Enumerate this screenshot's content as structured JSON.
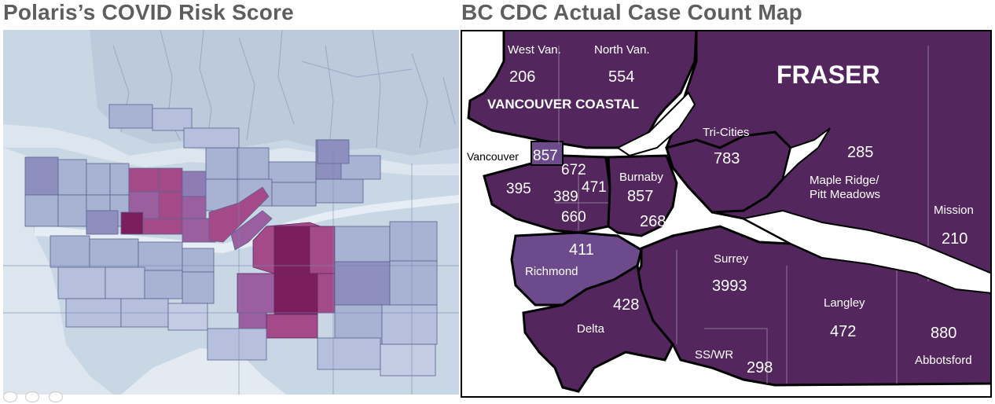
{
  "titles": {
    "left": "Polaris’s COVID Risk Score",
    "right": "BC CDC Actual Case Count Map"
  },
  "left_map": {
    "background_color": "#c9d6e4",
    "water_color": "#dde6ee",
    "high_risk_color": "#7c1e5e",
    "elevated_risk_color": "#a54a89",
    "moderate_risk_color": "#7c73ae",
    "low_risk_color": "#a8b3d3"
  },
  "right_map": {
    "region_fill": "#54265e",
    "highlight_fill": "#6c4a8c",
    "border_color": "#000000",
    "region_labels": {
      "coastal": "VANCOUVER COASTAL",
      "fraser": "FRASER"
    },
    "areas": {
      "west_van": {
        "name": "West Van.",
        "count": "206"
      },
      "north_van": {
        "name": "North Van.",
        "count": "554"
      },
      "tri_cities": {
        "name": "Tri-Cities",
        "count": "783"
      },
      "maple_ridge": {
        "name": "Maple Ridge/",
        "name2": "Pitt Meadows",
        "count": "285"
      },
      "vancouver": {
        "name": "Vancouver",
        "count": "857"
      },
      "van_a": {
        "count": "672"
      },
      "van_b": {
        "count": "395"
      },
      "van_c": {
        "count": "389"
      },
      "van_d": {
        "count": "471"
      },
      "van_e": {
        "count": "660"
      },
      "burnaby": {
        "name": "Burnaby",
        "count": "857"
      },
      "new_west": {
        "count": "268"
      },
      "mission": {
        "name": "Mission",
        "count": "210"
      },
      "richmond": {
        "name": "Richmond",
        "count": "411"
      },
      "surrey": {
        "name": "Surrey",
        "count": "3993"
      },
      "delta": {
        "name": "Delta",
        "count": "428"
      },
      "langley": {
        "name": "Langley",
        "count": "472"
      },
      "ss_wr": {
        "name": "SS/WR",
        "count": "298"
      },
      "abbotsford": {
        "name": "Abbotsford",
        "count": "880"
      }
    }
  }
}
